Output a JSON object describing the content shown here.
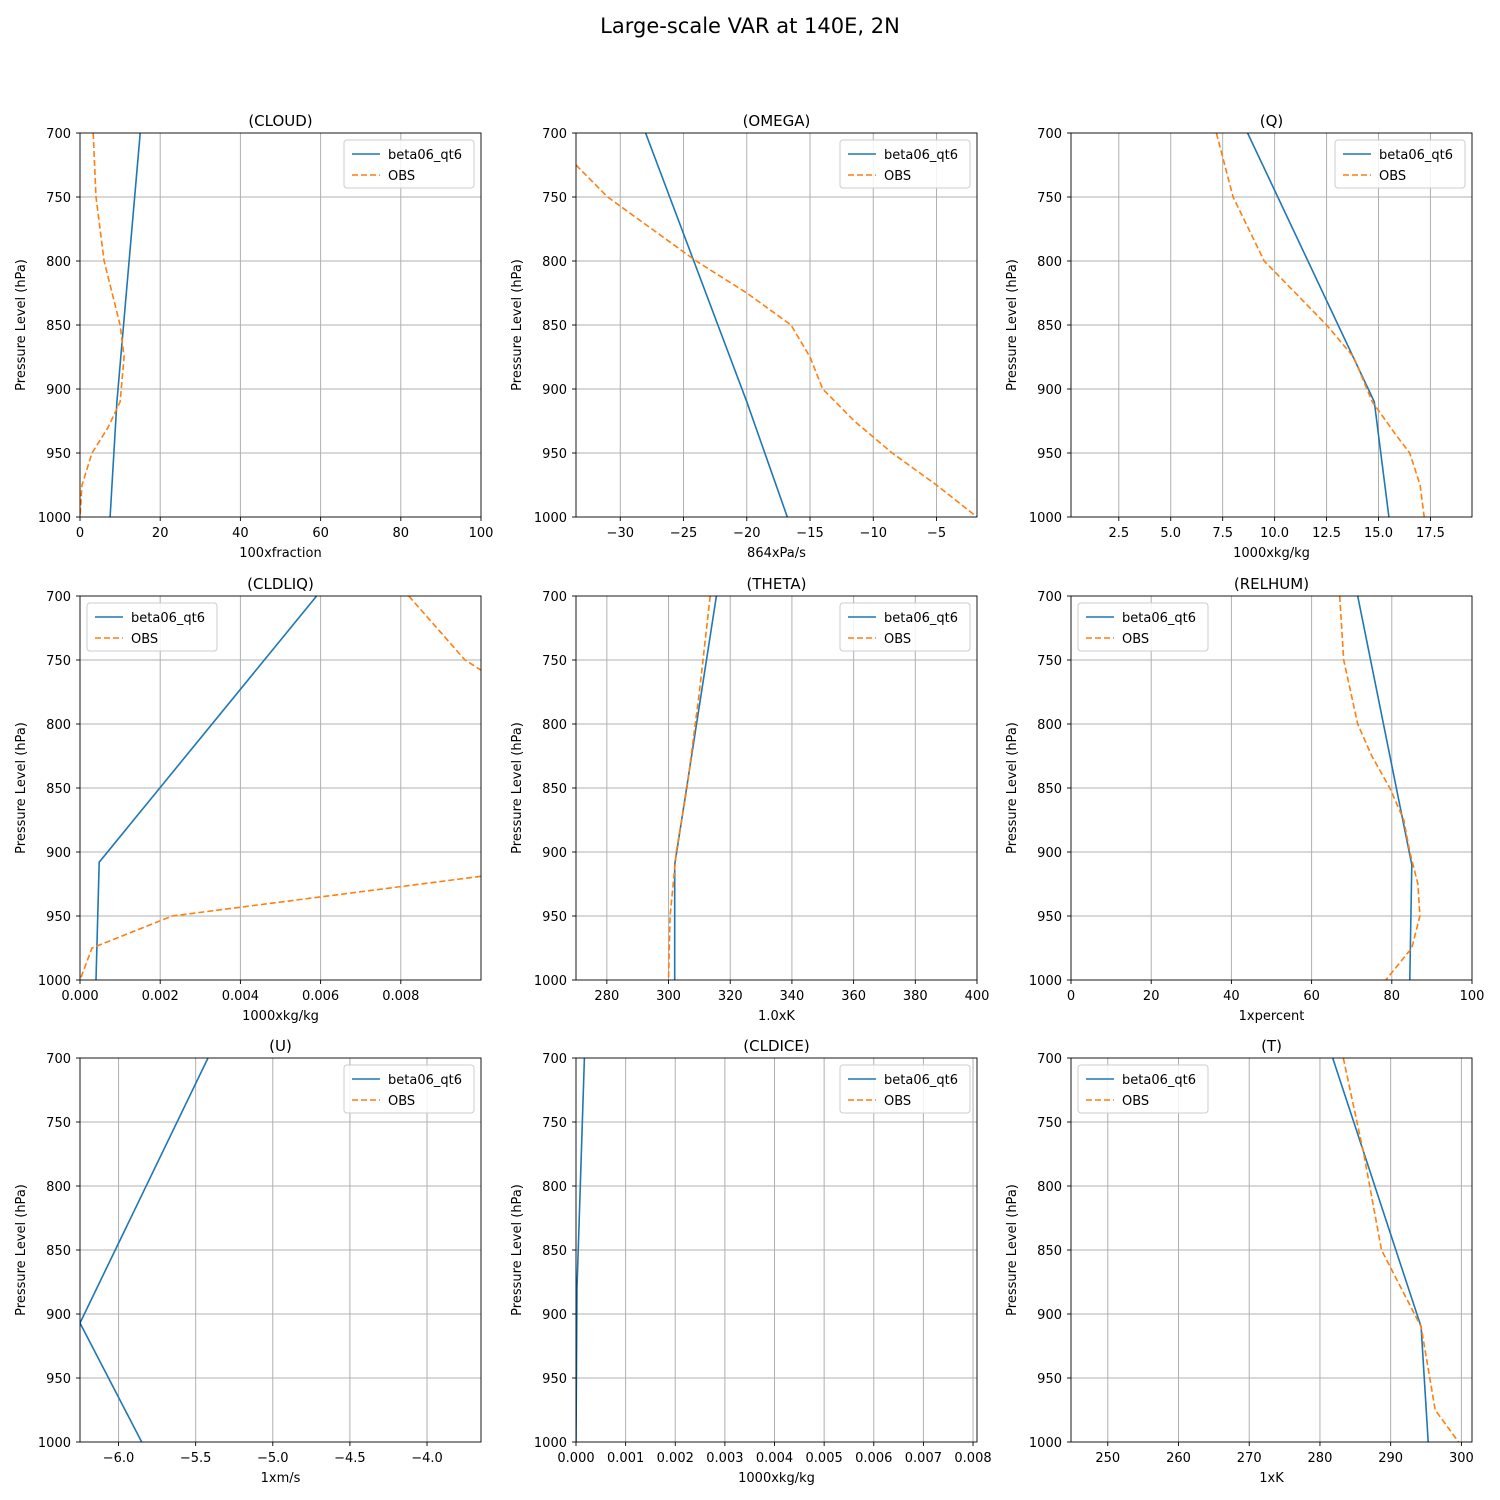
{
  "figure": {
    "title": "Large-scale VAR at 140E, 2N"
  },
  "colors": {
    "model": "#1f77b4",
    "obs": "#ff7f0e",
    "grid": "#b0b0b0",
    "axis": "#000000"
  },
  "chart_data": [
    {
      "type": "line",
      "title": "(CLOUD)",
      "xlabel": "100xfraction",
      "ylabel": "Pressure Level (hPa)",
      "xlim": [
        0,
        100
      ],
      "xticks": [
        0,
        20,
        40,
        60,
        80,
        100
      ],
      "xtick_labels": [
        "0",
        "20",
        "40",
        "60",
        "80",
        "100"
      ],
      "ylim": [
        1000,
        700
      ],
      "yticks": [
        700,
        750,
        800,
        850,
        900,
        950,
        1000
      ],
      "ytick_labels": [
        "700",
        "750",
        "800",
        "850",
        "900",
        "950",
        "1000"
      ],
      "legend": "upper right",
      "series": [
        {
          "name": "beta06_qt6",
          "style": "solid",
          "points": [
            [
              15,
              700
            ],
            [
              9.2,
              910
            ],
            [
              7.5,
              1000
            ]
          ]
        },
        {
          "name": "OBS",
          "style": "dashed",
          "points": [
            [
              3.3,
              700
            ],
            [
              4,
              750
            ],
            [
              6,
              800
            ],
            [
              10,
              850
            ],
            [
              11,
              875
            ],
            [
              10,
              910
            ],
            [
              7,
              930
            ],
            [
              3,
              950
            ],
            [
              0.5,
              975
            ],
            [
              0,
              1000
            ]
          ]
        }
      ]
    },
    {
      "type": "line",
      "title": "(OMEGA)",
      "xlabel": "864xPa/s",
      "ylabel": "Pressure Level (hPa)",
      "xlim": [
        -33.5,
        -1.8
      ],
      "xticks": [
        -30,
        -25,
        -20,
        -15,
        -10,
        -5
      ],
      "xtick_labels": [
        "−30",
        "−25",
        "−20",
        "−15",
        "−10",
        "−5"
      ],
      "ylim": [
        1000,
        700
      ],
      "yticks": [
        700,
        750,
        800,
        850,
        900,
        950,
        1000
      ],
      "ytick_labels": [
        "700",
        "750",
        "800",
        "850",
        "900",
        "950",
        "1000"
      ],
      "legend": "upper right",
      "series": [
        {
          "name": "beta06_qt6",
          "style": "solid",
          "points": [
            [
              -28,
              700
            ],
            [
              -20,
              910
            ],
            [
              -16.8,
              1000
            ]
          ]
        },
        {
          "name": "OBS",
          "style": "dashed",
          "points": [
            [
              -33.5,
              725
            ],
            [
              -31,
              750
            ],
            [
              -27.5,
              775
            ],
            [
              -24,
              800
            ],
            [
              -20,
              825
            ],
            [
              -16.5,
              850
            ],
            [
              -15,
              875
            ],
            [
              -14,
              900
            ],
            [
              -11.5,
              925
            ],
            [
              -8.5,
              950
            ],
            [
              -5,
              975
            ],
            [
              -1.8,
              1000
            ]
          ]
        }
      ]
    },
    {
      "type": "line",
      "title": "(Q)",
      "xlabel": "1000xkg/kg",
      "ylabel": "Pressure Level (hPa)",
      "xlim": [
        0.2,
        19.5
      ],
      "xticks": [
        2.5,
        5.0,
        7.5,
        10.0,
        12.5,
        15.0,
        17.5
      ],
      "xtick_labels": [
        "2.5",
        "5.0",
        "7.5",
        "10.0",
        "12.5",
        "15.0",
        "17.5"
      ],
      "ylim": [
        1000,
        700
      ],
      "yticks": [
        700,
        750,
        800,
        850,
        900,
        950,
        1000
      ],
      "ytick_labels": [
        "700",
        "750",
        "800",
        "850",
        "900",
        "950",
        "1000"
      ],
      "legend": "upper right",
      "series": [
        {
          "name": "beta06_qt6",
          "style": "solid",
          "points": [
            [
              8.7,
              700
            ],
            [
              14.8,
              910
            ],
            [
              15.5,
              1000
            ]
          ]
        },
        {
          "name": "OBS",
          "style": "dashed",
          "points": [
            [
              7.2,
              700
            ],
            [
              8,
              750
            ],
            [
              9.5,
              800
            ],
            [
              11,
              825
            ],
            [
              12.5,
              850
            ],
            [
              13.8,
              875
            ],
            [
              14.7,
              910
            ],
            [
              15.8,
              935
            ],
            [
              16.5,
              950
            ],
            [
              17,
              975
            ],
            [
              17.2,
              1000
            ]
          ]
        }
      ]
    },
    {
      "type": "line",
      "title": "(CLDLIQ)",
      "xlabel": "1000xkg/kg",
      "ylabel": "Pressure Level (hPa)",
      "xlim": [
        0,
        0.01
      ],
      "xticks": [
        0,
        0.002,
        0.004,
        0.006,
        0.008
      ],
      "xtick_labels": [
        "0.000",
        "0.002",
        "0.004",
        "0.006",
        "0.008"
      ],
      "ylim": [
        1000,
        700
      ],
      "yticks": [
        700,
        750,
        800,
        850,
        900,
        950,
        1000
      ],
      "ytick_labels": [
        "700",
        "750",
        "800",
        "850",
        "900",
        "950",
        "1000"
      ],
      "legend": "upper left",
      "series": [
        {
          "name": "beta06_qt6",
          "style": "solid",
          "points": [
            [
              0.0059,
              700
            ],
            [
              0.00048,
              908
            ],
            [
              0.0004,
              1000
            ]
          ]
        },
        {
          "name": "OBS",
          "style": "dashed",
          "points": [
            [
              0.0082,
              700
            ],
            [
              0.0096,
              750
            ],
            [
              0.01,
              758
            ]
          ]
        },
        {
          "name": "OBS",
          "style": "dashed",
          "points": [
            [
              0.01,
              919
            ],
            [
              0.0023,
              950
            ],
            [
              0.0003,
              975
            ],
            [
              0,
              1000
            ]
          ]
        }
      ]
    },
    {
      "type": "line",
      "title": "(THETA)",
      "xlabel": "1.0xK",
      "ylabel": "Pressure Level (hPa)",
      "xlim": [
        270,
        400
      ],
      "xticks": [
        280,
        300,
        320,
        340,
        360,
        380,
        400
      ],
      "xtick_labels": [
        "280",
        "300",
        "320",
        "340",
        "360",
        "380",
        "400"
      ],
      "ylim": [
        1000,
        700
      ],
      "yticks": [
        700,
        750,
        800,
        850,
        900,
        950,
        1000
      ],
      "ytick_labels": [
        "700",
        "750",
        "800",
        "850",
        "900",
        "950",
        "1000"
      ],
      "legend": "upper right",
      "series": [
        {
          "name": "beta06_qt6",
          "style": "solid",
          "points": [
            [
              315.5,
              700
            ],
            [
              302,
              910
            ],
            [
              302,
              1000
            ]
          ]
        },
        {
          "name": "OBS",
          "style": "dashed",
          "points": [
            [
              313.5,
              700
            ],
            [
              310,
              775
            ],
            [
              306,
              850
            ],
            [
              302.5,
              900
            ],
            [
              300.5,
              950
            ],
            [
              300,
              1000
            ]
          ]
        }
      ]
    },
    {
      "type": "line",
      "title": "(RELHUM)",
      "xlabel": "1xpercent",
      "ylabel": "Pressure Level (hPa)",
      "xlim": [
        0,
        100
      ],
      "xticks": [
        0,
        20,
        40,
        60,
        80,
        100
      ],
      "xtick_labels": [
        "0",
        "20",
        "40",
        "60",
        "80",
        "100"
      ],
      "ylim": [
        1000,
        700
      ],
      "yticks": [
        700,
        750,
        800,
        850,
        900,
        950,
        1000
      ],
      "ytick_labels": [
        "700",
        "750",
        "800",
        "850",
        "900",
        "950",
        "1000"
      ],
      "legend": "upper left",
      "series": [
        {
          "name": "beta06_qt6",
          "style": "solid",
          "points": [
            [
              71.5,
              700
            ],
            [
              85,
              910
            ],
            [
              84.5,
              1000
            ]
          ]
        },
        {
          "name": "OBS",
          "style": "dashed",
          "points": [
            [
              67,
              700
            ],
            [
              68,
              750
            ],
            [
              71.5,
              800
            ],
            [
              75,
              825
            ],
            [
              79.5,
              850
            ],
            [
              83,
              875
            ],
            [
              84.5,
              900
            ],
            [
              86.5,
              925
            ],
            [
              87,
              950
            ],
            [
              85,
              975
            ],
            [
              78.5,
              1000
            ]
          ]
        }
      ]
    },
    {
      "type": "line",
      "title": "(U)",
      "xlabel": "1xm/s",
      "ylabel": "Pressure Level (hPa)",
      "xlim": [
        -6.25,
        -3.65
      ],
      "xticks": [
        -6.0,
        -5.5,
        -5.0,
        -4.5,
        -4.0
      ],
      "xtick_labels": [
        "−6.0",
        "−5.5",
        "−5.0",
        "−4.5",
        "−4.0"
      ],
      "ylim": [
        1000,
        700
      ],
      "yticks": [
        700,
        750,
        800,
        850,
        900,
        950,
        1000
      ],
      "ytick_labels": [
        "700",
        "750",
        "800",
        "850",
        "900",
        "950",
        "1000"
      ],
      "legend": "upper right",
      "series": [
        {
          "name": "beta06_qt6",
          "style": "solid",
          "points": [
            [
              -5.42,
              700
            ],
            [
              -6.25,
              907
            ],
            [
              -5.85,
              1000
            ]
          ]
        },
        {
          "name": "OBS",
          "style": "dashed",
          "points": []
        }
      ]
    },
    {
      "type": "line",
      "title": "(CLDICE)",
      "xlabel": "1000xkg/kg",
      "ylabel": "Pressure Level (hPa)",
      "xlim": [
        0,
        0.00808
      ],
      "xticks": [
        0,
        0.001,
        0.002,
        0.003,
        0.004,
        0.005,
        0.006,
        0.007,
        0.008
      ],
      "xtick_labels": [
        "0.000",
        "0.001",
        "0.002",
        "0.003",
        "0.004",
        "0.005",
        "0.006",
        "0.007",
        "0.008"
      ],
      "ylim": [
        1000,
        700
      ],
      "yticks": [
        700,
        750,
        800,
        850,
        900,
        950,
        1000
      ],
      "ytick_labels": [
        "700",
        "750",
        "800",
        "850",
        "900",
        "950",
        "1000"
      ],
      "legend": "upper right",
      "series": [
        {
          "name": "beta06_qt6",
          "style": "solid",
          "points": [
            [
              0.00017,
              700
            ],
            [
              2e-05,
              880
            ],
            [
              0,
              1000
            ]
          ]
        },
        {
          "name": "OBS",
          "style": "dashed",
          "points": []
        }
      ]
    },
    {
      "type": "line",
      "title": "(T)",
      "xlabel": "1xK",
      "ylabel": "Pressure Level (hPa)",
      "xlim": [
        244.8,
        301.5
      ],
      "xticks": [
        250,
        260,
        270,
        280,
        290,
        300
      ],
      "xtick_labels": [
        "250",
        "260",
        "270",
        "280",
        "290",
        "300"
      ],
      "ylim": [
        1000,
        700
      ],
      "yticks": [
        700,
        750,
        800,
        850,
        900,
        950,
        1000
      ],
      "ytick_labels": [
        "700",
        "750",
        "800",
        "850",
        "900",
        "950",
        "1000"
      ],
      "legend": "upper left",
      "series": [
        {
          "name": "beta06_qt6",
          "style": "solid",
          "points": [
            [
              281.8,
              700
            ],
            [
              294.3,
              910
            ],
            [
              295.3,
              1000
            ]
          ]
        },
        {
          "name": "OBS",
          "style": "dashed",
          "points": [
            [
              283.3,
              700
            ],
            [
              286.2,
              775
            ],
            [
              288.7,
              850
            ],
            [
              294.3,
              910
            ],
            [
              296.3,
              975
            ],
            [
              299.6,
              1000
            ]
          ]
        }
      ]
    }
  ]
}
